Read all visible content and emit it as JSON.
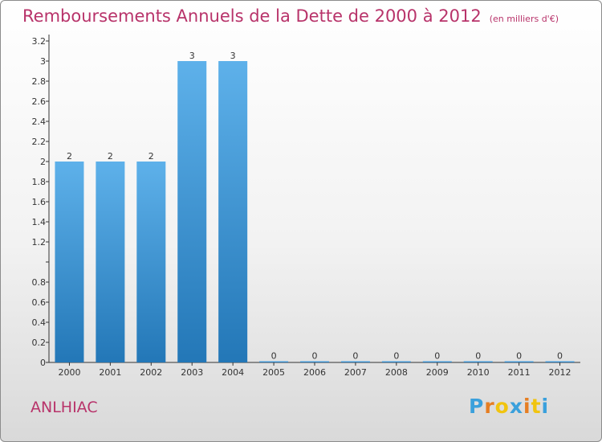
{
  "title": "Remboursements Annuels de la Dette de 2000 à 2012",
  "title_unit": "(en milliers d'€)",
  "commune": "ANLHIAC",
  "logo": {
    "letters": [
      "P",
      "r",
      "o",
      "x",
      "i",
      "t",
      "i"
    ],
    "colors": [
      "#3aa0dc",
      "#e67e22",
      "#f1c40f",
      "#3aa0dc",
      "#e67e22",
      "#f1c40f",
      "#3aa0dc"
    ]
  },
  "colors": {
    "bar_top": "#5eb1ea",
    "bar_bottom": "#2377b7",
    "title": "#b8336a"
  },
  "chart_data": {
    "type": "bar",
    "title": "Remboursements Annuels de la Dette de 2000 à 2012",
    "categories": [
      "2000",
      "2001",
      "2002",
      "2003",
      "2004",
      "2005",
      "2006",
      "2007",
      "2008",
      "2009",
      "2010",
      "2011",
      "2012"
    ],
    "values": [
      2,
      2,
      2,
      3,
      3,
      0,
      0,
      0,
      0,
      0,
      0,
      0,
      0
    ],
    "data_labels": [
      "2",
      "2",
      "2",
      "3",
      "3",
      "0",
      "0",
      "0",
      "0",
      "0",
      "0",
      "0",
      "0"
    ],
    "ylim": [
      0,
      3.2
    ],
    "yticks": [
      0,
      0.2,
      0.4,
      0.6,
      0.8,
      1,
      1.2,
      1.4,
      1.6,
      1.8,
      2,
      2.2,
      2.4,
      2.6,
      2.8,
      3,
      3.2
    ],
    "ytick_labels": [
      "0",
      "0.2",
      "0.4",
      "0.6",
      "0.8",
      "",
      "1.2",
      "1.4",
      "1.6",
      "1.8",
      "2",
      "2.2",
      "2.4",
      "2.6",
      "2.8",
      "3",
      "3.2"
    ],
    "xlabel": "",
    "ylabel": "",
    "grid": false
  }
}
